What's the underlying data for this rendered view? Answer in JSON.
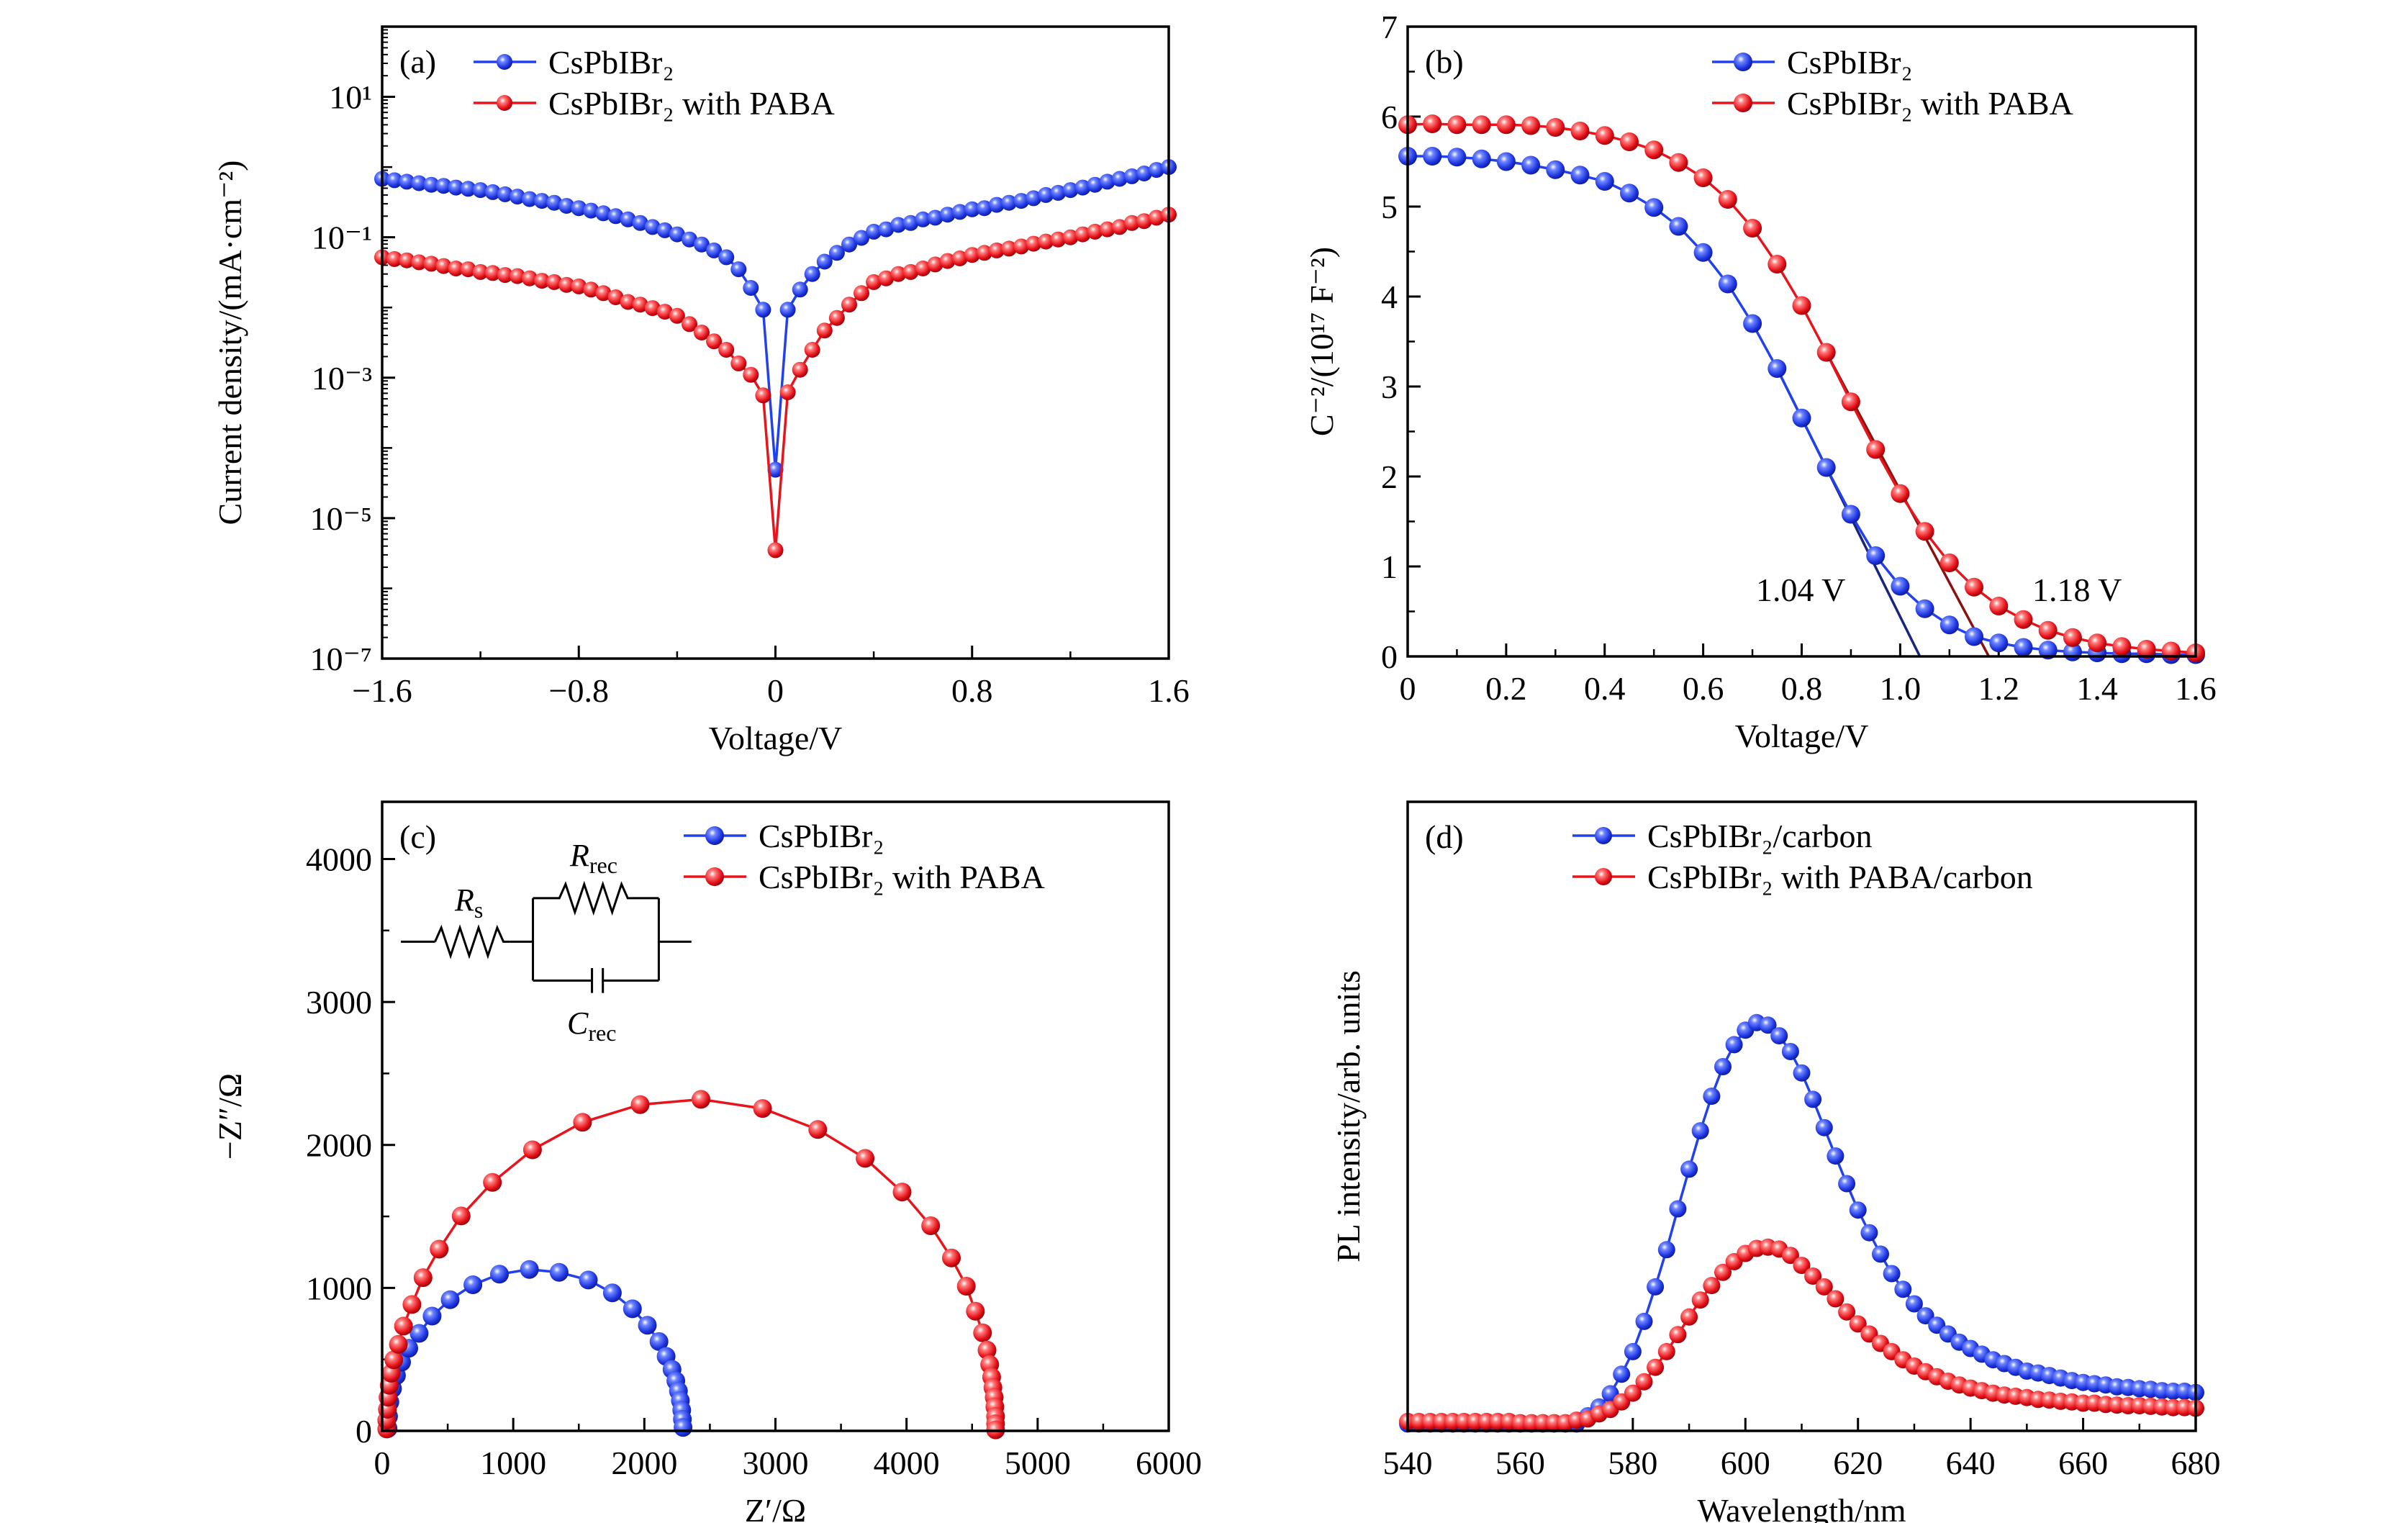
{
  "chart_data": [
    {
      "panel_label": "(a)",
      "type": "line",
      "x_scale": "linear",
      "y_scale": "log",
      "xlim": [
        -1.6,
        1.6
      ],
      "ylim": [
        1e-07,
        100
      ],
      "xlabel": "Voltage/V",
      "ylabel": "Current density/(mA·cm⁻²)",
      "x_ticks": [
        -1.6,
        -0.8,
        0,
        0.8,
        1.6
      ],
      "x_tick_labels": [
        "−1.6",
        "−0.8",
        "0",
        "0.8",
        "1.6"
      ],
      "x_minor_ticks": [
        -1.2,
        -0.4,
        0.4,
        1.2
      ],
      "y_ticks": [
        10,
        0.1,
        0.001,
        1e-05,
        1e-07
      ],
      "y_tick_labels": [
        "10¹",
        "10⁻¹",
        "10⁻³",
        "10⁻⁵",
        "10⁻⁷"
      ],
      "grid": false,
      "legend": "top-left",
      "x": [
        -1.6,
        -1.55,
        -1.5,
        -1.45,
        -1.4,
        -1.35,
        -1.3,
        -1.25,
        -1.2,
        -1.15,
        -1.1,
        -1.05,
        -1,
        -0.95,
        -0.9,
        -0.85,
        -0.8,
        -0.75,
        -0.7,
        -0.65,
        -0.6,
        -0.55,
        -0.5,
        -0.45,
        -0.4,
        -0.35,
        -0.3,
        -0.25,
        -0.2,
        -0.15,
        -0.1,
        -0.05,
        0,
        0.05,
        0.1,
        0.15,
        0.2,
        0.25,
        0.3,
        0.35,
        0.4,
        0.45,
        0.5,
        0.55,
        0.6,
        0.65,
        0.7,
        0.75,
        0.8,
        0.85,
        0.9,
        0.95,
        1,
        1.05,
        1.1,
        1.15,
        1.2,
        1.25,
        1.3,
        1.35,
        1.4,
        1.45,
        1.5,
        1.55,
        1.6
      ],
      "series": [
        {
          "name": "CsPbIBr₂",
          "color": "#2140ee",
          "values": [
            0.68,
            0.65,
            0.62,
            0.59,
            0.56,
            0.54,
            0.51,
            0.49,
            0.47,
            0.44,
            0.41,
            0.38,
            0.35,
            0.33,
            0.31,
            0.28,
            0.26,
            0.24,
            0.22,
            0.2,
            0.18,
            0.16,
            0.14,
            0.126,
            0.11,
            0.093,
            0.079,
            0.065,
            0.052,
            0.035,
            0.019,
            0.0093,
            4.9e-05,
            0.0093,
            0.018,
            0.03,
            0.045,
            0.06,
            0.079,
            0.098,
            0.12,
            0.13,
            0.15,
            0.16,
            0.18,
            0.19,
            0.21,
            0.23,
            0.25,
            0.26,
            0.29,
            0.31,
            0.33,
            0.36,
            0.4,
            0.43,
            0.47,
            0.51,
            0.56,
            0.62,
            0.68,
            0.74,
            0.81,
            0.91,
            1.0
          ]
        },
        {
          "name": "CsPbIBr₂ with PABA",
          "color": "#e8141c",
          "values": [
            0.052,
            0.049,
            0.047,
            0.044,
            0.042,
            0.039,
            0.036,
            0.035,
            0.032,
            0.031,
            0.029,
            0.028,
            0.026,
            0.024,
            0.023,
            0.021,
            0.02,
            0.018,
            0.016,
            0.014,
            0.012,
            0.011,
            0.0098,
            0.0087,
            0.0076,
            0.0058,
            0.0044,
            0.0033,
            0.0025,
            0.0016,
            0.0011,
            0.00056,
            3.5e-06,
            0.00062,
            0.0013,
            0.0025,
            0.0047,
            0.0071,
            0.011,
            0.016,
            0.023,
            0.026,
            0.03,
            0.032,
            0.036,
            0.041,
            0.046,
            0.05,
            0.056,
            0.06,
            0.065,
            0.069,
            0.074,
            0.081,
            0.087,
            0.093,
            0.1,
            0.11,
            0.12,
            0.13,
            0.14,
            0.16,
            0.17,
            0.19,
            0.21
          ]
        }
      ]
    },
    {
      "panel_label": "(b)",
      "type": "line",
      "x_scale": "linear",
      "y_scale": "linear",
      "xlim": [
        0,
        1.6
      ],
      "ylim": [
        0,
        7
      ],
      "xlabel": "Voltage/V",
      "ylabel": "C⁻²/(10¹⁷ F⁻²)",
      "x_ticks": [
        0,
        0.2,
        0.4,
        0.6,
        0.8,
        1.0,
        1.2,
        1.4,
        1.6
      ],
      "x_tick_labels": [
        "0",
        "0.2",
        "0.4",
        "0.6",
        "0.8",
        "1.0",
        "1.2",
        "1.4",
        "1.6"
      ],
      "x_minor_ticks": [
        0.1,
        0.3,
        0.5,
        0.7,
        0.9,
        1.1,
        1.3,
        1.5
      ],
      "y_ticks": [
        0,
        1,
        2,
        3,
        4,
        5,
        6,
        7
      ],
      "y_tick_labels": [
        "0",
        "1",
        "2",
        "3",
        "4",
        "5",
        "6",
        "7"
      ],
      "y_minor_ticks": [
        0.5,
        1.5,
        2.5,
        3.5,
        4.5,
        5.5,
        6.5
      ],
      "grid": false,
      "legend": "top-right",
      "x": [
        0,
        0.05,
        0.1,
        0.15,
        0.2,
        0.25,
        0.3,
        0.35,
        0.4,
        0.45,
        0.5,
        0.55,
        0.6,
        0.65,
        0.7,
        0.75,
        0.8,
        0.85,
        0.9,
        0.95,
        1.0,
        1.05,
        1.1,
        1.15,
        1.2,
        1.25,
        1.3,
        1.35,
        1.4,
        1.45,
        1.5,
        1.55,
        1.6
      ],
      "series": [
        {
          "name": "CsPbIBr₂",
          "color": "#2140ee",
          "values": [
            5.56,
            5.56,
            5.55,
            5.53,
            5.5,
            5.46,
            5.41,
            5.35,
            5.28,
            5.15,
            4.99,
            4.78,
            4.49,
            4.14,
            3.7,
            3.2,
            2.65,
            2.1,
            1.58,
            1.12,
            0.78,
            0.53,
            0.35,
            0.22,
            0.15,
            0.1,
            0.07,
            0.05,
            0.04,
            0.03,
            0.03,
            0.02,
            0.02
          ]
        },
        {
          "name": "CsPbIBr₂ with PABA",
          "color": "#e8141c",
          "values": [
            5.91,
            5.92,
            5.91,
            5.91,
            5.91,
            5.9,
            5.88,
            5.84,
            5.79,
            5.72,
            5.63,
            5.49,
            5.32,
            5.08,
            4.76,
            4.36,
            3.9,
            3.38,
            2.83,
            2.3,
            1.81,
            1.39,
            1.04,
            0.77,
            0.56,
            0.41,
            0.29,
            0.21,
            0.15,
            0.11,
            0.08,
            0.06,
            0.04
          ]
        }
      ],
      "fit_lines": [
        {
          "x": [
            0.75,
            1.04
          ],
          "y": [
            3.2,
            0
          ],
          "color": "#1a237e"
        },
        {
          "x": [
            0.85,
            1.18
          ],
          "y": [
            3.38,
            0
          ],
          "color": "#8b1010"
        }
      ],
      "annotations": [
        "1.04 V",
        "1.18 V"
      ]
    },
    {
      "panel_label": "(c)",
      "type": "scatter",
      "x_scale": "linear",
      "y_scale": "linear",
      "xlim": [
        0,
        6000
      ],
      "ylim": [
        0,
        4400
      ],
      "xlabel": "Z′/Ω",
      "ylabel": "−Z″/Ω",
      "x_ticks": [
        0,
        1000,
        2000,
        3000,
        4000,
        5000,
        6000
      ],
      "x_tick_labels": [
        "0",
        "1000",
        "2000",
        "3000",
        "4000",
        "5000",
        "6000"
      ],
      "x_minor_ticks": [
        500,
        1500,
        2500,
        3500,
        4500,
        5500
      ],
      "y_ticks": [
        0,
        1000,
        2000,
        3000,
        4000
      ],
      "y_tick_labels": [
        "0",
        "1000",
        "2000",
        "3000",
        "4000"
      ],
      "y_minor_ticks": [
        500,
        1500,
        2500,
        3500
      ],
      "grid": false,
      "legend": "top-right",
      "series": [
        {
          "name": "CsPbIBr₂",
          "color": "#2140ee",
          "points": [
            [
              45,
              17
            ],
            [
              49,
              101
            ],
            [
              59,
              202
            ],
            [
              79,
              296
            ],
            [
              109,
              387
            ],
            [
              148,
              481
            ],
            [
              203,
              578
            ],
            [
              282,
              682
            ],
            [
              381,
              803
            ],
            [
              519,
              918
            ],
            [
              692,
              1022
            ],
            [
              895,
              1096
            ],
            [
              1123,
              1129
            ],
            [
              1350,
              1109
            ],
            [
              1573,
              1055
            ],
            [
              1756,
              965
            ],
            [
              1909,
              854
            ],
            [
              2023,
              739
            ],
            [
              2112,
              625
            ],
            [
              2166,
              521
            ],
            [
              2211,
              430
            ],
            [
              2240,
              350
            ],
            [
              2260,
              279
            ],
            [
              2275,
              212
            ],
            [
              2285,
              145
            ],
            [
              2290,
              81
            ],
            [
              2295,
              24
            ]
          ]
        },
        {
          "name": "CsPbIBr₂ with PABA",
          "color": "#e8141c",
          "points": [
            [
              35,
              13
            ],
            [
              35,
              74
            ],
            [
              40,
              151
            ],
            [
              45,
              235
            ],
            [
              54,
              319
            ],
            [
              69,
              403
            ],
            [
              89,
              497
            ],
            [
              124,
              605
            ],
            [
              163,
              733
            ],
            [
              227,
              884
            ],
            [
              312,
              1072
            ],
            [
              435,
              1271
            ],
            [
              603,
              1503
            ],
            [
              841,
              1738
            ],
            [
              1147,
              1966
            ],
            [
              1528,
              2158
            ],
            [
              1968,
              2282
            ],
            [
              2432,
              2319
            ],
            [
              2902,
              2255
            ],
            [
              3323,
              2108
            ],
            [
              3684,
              1906
            ],
            [
              3966,
              1671
            ],
            [
              4184,
              1435
            ],
            [
              4342,
              1210
            ],
            [
              4456,
              1012
            ],
            [
              4525,
              837
            ],
            [
              4580,
              686
            ],
            [
              4614,
              565
            ],
            [
              4634,
              464
            ],
            [
              4649,
              376
            ],
            [
              4659,
              303
            ],
            [
              4669,
              235
            ],
            [
              4674,
              168
            ],
            [
              4679,
              101
            ],
            [
              4679,
              50
            ],
            [
              4679,
              7
            ]
          ]
        }
      ],
      "inset_circuit": {
        "r_s": "R",
        "r_s_sub": "s",
        "r_rec": "R",
        "r_rec_sub": "rec",
        "c_rec": "C",
        "c_rec_sub": "rec"
      }
    },
    {
      "panel_label": "(d)",
      "type": "line",
      "x_scale": "linear",
      "y_scale": "linear",
      "xlim": [
        540,
        680
      ],
      "ylim": [
        0,
        1
      ],
      "xlabel": "Wavelength/nm",
      "ylabel": "PL intensity/arb. units",
      "x_ticks": [
        540,
        560,
        580,
        600,
        620,
        640,
        660,
        680
      ],
      "x_tick_labels": [
        "540",
        "560",
        "580",
        "600",
        "620",
        "640",
        "660",
        "680"
      ],
      "x_minor_ticks": [
        550,
        570,
        590,
        610,
        630,
        650,
        670
      ],
      "y_ticks": [],
      "y_tick_labels": [],
      "grid": false,
      "legend": "top-right",
      "x": [
        540,
        542,
        544,
        546,
        548,
        550,
        552,
        554,
        556,
        558,
        560,
        562,
        564,
        566,
        568,
        570,
        572,
        574,
        576,
        578,
        580,
        582,
        584,
        586,
        588,
        590,
        592,
        594,
        596,
        598,
        600,
        602,
        604,
        606,
        608,
        610,
        612,
        614,
        616,
        618,
        620,
        622,
        624,
        626,
        628,
        630,
        632,
        634,
        636,
        638,
        640,
        642,
        644,
        646,
        648,
        650,
        652,
        654,
        656,
        658,
        660,
        662,
        664,
        666,
        668,
        670,
        672,
        674,
        676,
        678,
        680
      ],
      "series": [
        {
          "name": "CsPbIBr₂/carbon",
          "color": "#2140ee",
          "values": [
            0.011,
            0.011,
            0.011,
            0.011,
            0.011,
            0.011,
            0.011,
            0.011,
            0.011,
            0.011,
            0.011,
            0.011,
            0.011,
            0.011,
            0.011,
            0.011,
            0.024,
            0.038,
            0.059,
            0.09,
            0.126,
            0.174,
            0.229,
            0.288,
            0.353,
            0.416,
            0.477,
            0.532,
            0.579,
            0.614,
            0.637,
            0.649,
            0.645,
            0.628,
            0.603,
            0.569,
            0.527,
            0.482,
            0.437,
            0.393,
            0.351,
            0.315,
            0.281,
            0.25,
            0.225,
            0.202,
            0.183,
            0.168,
            0.154,
            0.141,
            0.131,
            0.122,
            0.113,
            0.107,
            0.101,
            0.095,
            0.092,
            0.088,
            0.084,
            0.08,
            0.077,
            0.075,
            0.073,
            0.07,
            0.069,
            0.067,
            0.066,
            0.064,
            0.063,
            0.063,
            0.061
          ]
        },
        {
          "name": "CsPbIBr₂ with PABA/carbon",
          "color": "#e8141c",
          "values": [
            0.015,
            0.015,
            0.015,
            0.015,
            0.015,
            0.015,
            0.015,
            0.015,
            0.015,
            0.015,
            0.013,
            0.013,
            0.013,
            0.013,
            0.013,
            0.017,
            0.019,
            0.027,
            0.034,
            0.046,
            0.06,
            0.078,
            0.101,
            0.126,
            0.153,
            0.181,
            0.208,
            0.231,
            0.252,
            0.269,
            0.282,
            0.29,
            0.292,
            0.289,
            0.279,
            0.263,
            0.246,
            0.229,
            0.21,
            0.189,
            0.17,
            0.154,
            0.139,
            0.126,
            0.113,
            0.103,
            0.094,
            0.086,
            0.079,
            0.073,
            0.068,
            0.064,
            0.06,
            0.057,
            0.055,
            0.053,
            0.05,
            0.049,
            0.047,
            0.046,
            0.044,
            0.044,
            0.042,
            0.041,
            0.04,
            0.04,
            0.039,
            0.038,
            0.037,
            0.037,
            0.036
          ]
        }
      ]
    }
  ]
}
